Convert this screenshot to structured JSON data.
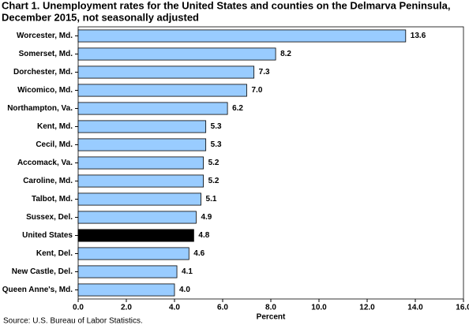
{
  "chart_data": {
    "type": "hbar",
    "title": [
      "Chart 1. Unemployment rates for the United States and counties on the Delmarva Peninsula,",
      "December 2015, not seasonally adjusted"
    ],
    "categories": [
      "Worcester, Md.",
      "Somerset, Md.",
      "Dorchester, Md.",
      "Wicomico, Md.",
      "Northampton, Va.",
      "Kent, Md.",
      "Cecil, Md.",
      "Accomack, Va.",
      "Caroline, Md.",
      "Talbot, Md.",
      "Sussex, Del.",
      "United States",
      "Kent, Del.",
      "New Castle, Del.",
      "Queen Anne's, Md."
    ],
    "values": [
      13.6,
      8.2,
      7.3,
      7.0,
      6.2,
      5.3,
      5.3,
      5.2,
      5.2,
      5.1,
      4.9,
      4.8,
      4.6,
      4.1,
      4.0
    ],
    "value_labels": [
      "13.6",
      "8.2",
      "7.3",
      "7.0",
      "6.2",
      "5.3",
      "5.3",
      "5.2",
      "5.2",
      "5.1",
      "4.9",
      "4.8",
      "4.6",
      "4.1",
      "4.0"
    ],
    "colors": [
      "#99ccff",
      "#99ccff",
      "#99ccff",
      "#99ccff",
      "#99ccff",
      "#99ccff",
      "#99ccff",
      "#99ccff",
      "#99ccff",
      "#99ccff",
      "#99ccff",
      "#000000",
      "#99ccff",
      "#99ccff",
      "#99ccff"
    ],
    "xlim": [
      0,
      16
    ],
    "xticks": [
      {
        "value": 0,
        "label": "0.0"
      },
      {
        "value": 2,
        "label": "2.0"
      },
      {
        "value": 4,
        "label": "4.0"
      },
      {
        "value": 6,
        "label": "6.0"
      },
      {
        "value": 8,
        "label": "8.0"
      },
      {
        "value": 10,
        "label": "10.0"
      },
      {
        "value": 12,
        "label": "12.0"
      },
      {
        "value": 14,
        "label": "14.0"
      },
      {
        "value": 16,
        "label": "16.0"
      }
    ],
    "x_label": "Percent",
    "source": "Source: U.S. Bureau of Labor Statistics."
  }
}
